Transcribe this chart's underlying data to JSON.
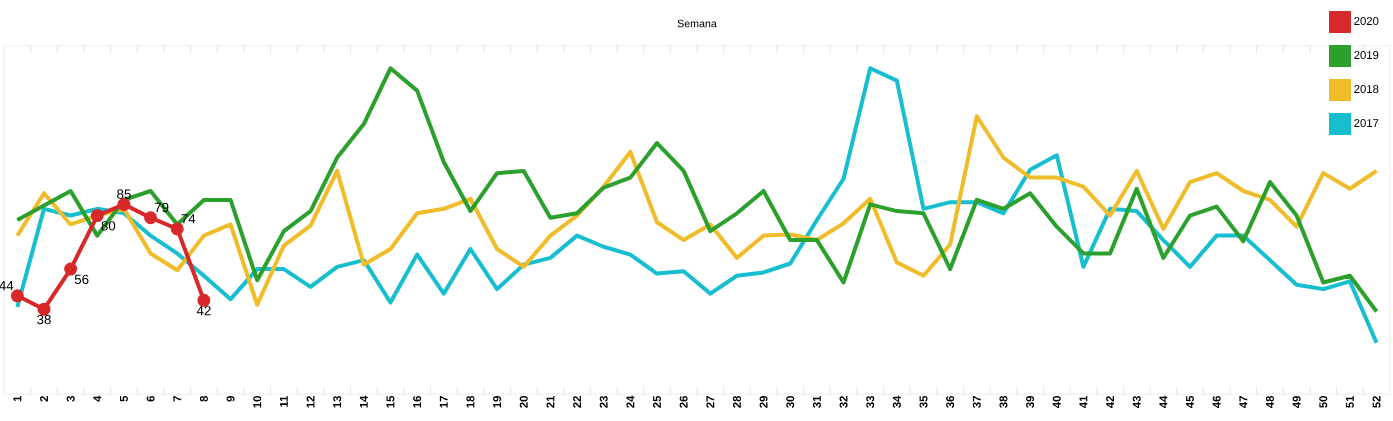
{
  "chart_data": {
    "type": "line",
    "title": "Semana",
    "categories": [
      "1",
      "2",
      "3",
      "4",
      "5",
      "6",
      "7",
      "8",
      "9",
      "10",
      "11",
      "12",
      "13",
      "14",
      "15",
      "16",
      "17",
      "18",
      "19",
      "20",
      "21",
      "22",
      "23",
      "24",
      "25",
      "26",
      "27",
      "28",
      "29",
      "30",
      "31",
      "32",
      "33",
      "34",
      "35",
      "36",
      "37",
      "38",
      "39",
      "40",
      "41",
      "42",
      "43",
      "44",
      "45",
      "46",
      "47",
      "48",
      "49",
      "50",
      "51",
      "52"
    ],
    "ylim": [
      0,
      156
    ],
    "legend": "top right",
    "marker": "none",
    "line_style": "solid",
    "series": [
      {
        "name": "2020",
        "color": "#d7282a",
        "marker": "circle",
        "values": [
          44,
          38,
          56,
          80,
          85,
          79,
          74,
          42,
          null,
          null,
          null,
          null,
          null,
          null,
          null,
          null,
          null,
          null,
          null,
          null,
          null,
          null,
          null,
          null,
          null,
          null,
          null,
          null,
          null,
          null,
          null,
          null,
          null,
          null,
          null,
          null,
          null,
          null,
          null,
          null,
          null,
          null,
          null,
          null,
          null,
          null,
          null,
          null,
          null,
          null,
          null,
          null
        ],
        "value_labels": [
          "44",
          "38",
          "56",
          "80",
          "85",
          "79",
          "74",
          "42",
          null,
          null,
          null,
          null,
          null,
          null,
          null,
          null,
          null,
          null,
          null,
          null,
          null,
          null,
          null,
          null,
          null,
          null,
          null,
          null,
          null,
          null,
          null,
          null,
          null,
          null,
          null,
          null,
          null,
          null,
          null,
          null,
          null,
          null,
          null,
          null,
          null,
          null,
          null,
          null,
          null,
          null,
          null,
          null
        ]
      },
      {
        "name": "2019",
        "color": "#2ca02c",
        "values": [
          78,
          84.5,
          91,
          71,
          87,
          91,
          76,
          87,
          87,
          51,
          73,
          82,
          106,
          121,
          146,
          136,
          104,
          82,
          99,
          100,
          79,
          81,
          92.5,
          97,
          112.5,
          100,
          73,
          81,
          91,
          69,
          69,
          50,
          85,
          82,
          81,
          56,
          87,
          83,
          90,
          75,
          63,
          63,
          92,
          61,
          80,
          84,
          68.5,
          95,
          80,
          50,
          53,
          37
        ]
      },
      {
        "name": "2018",
        "color": "#f0bc2a",
        "values": [
          71,
          90,
          76,
          80,
          83,
          63,
          55.5,
          71,
          76,
          40,
          66.5,
          75.5,
          100,
          58,
          65,
          81,
          83,
          87.5,
          65,
          57,
          71,
          80,
          93,
          108.5,
          77,
          69,
          76,
          61,
          71,
          71.5,
          69,
          76.5,
          87.5,
          59,
          53,
          67,
          124.5,
          106,
          97,
          97,
          93,
          80,
          100,
          74,
          95,
          99,
          91,
          87,
          75,
          99,
          92,
          100
        ]
      },
      {
        "name": "2017",
        "color": "#17becf",
        "values": [
          39,
          83,
          80,
          83,
          81,
          71,
          63,
          53,
          42.5,
          56,
          56,
          48,
          57,
          60,
          41,
          62.5,
          45,
          65,
          47,
          58,
          61,
          71,
          66,
          62.5,
          54,
          55,
          45,
          53,
          54.5,
          58.5,
          78,
          96.5,
          146,
          140.5,
          83,
          86,
          86,
          81,
          100.5,
          107,
          57,
          83,
          82,
          69,
          57,
          71,
          71,
          60,
          49,
          47,
          50.5,
          23
        ]
      }
    ]
  }
}
